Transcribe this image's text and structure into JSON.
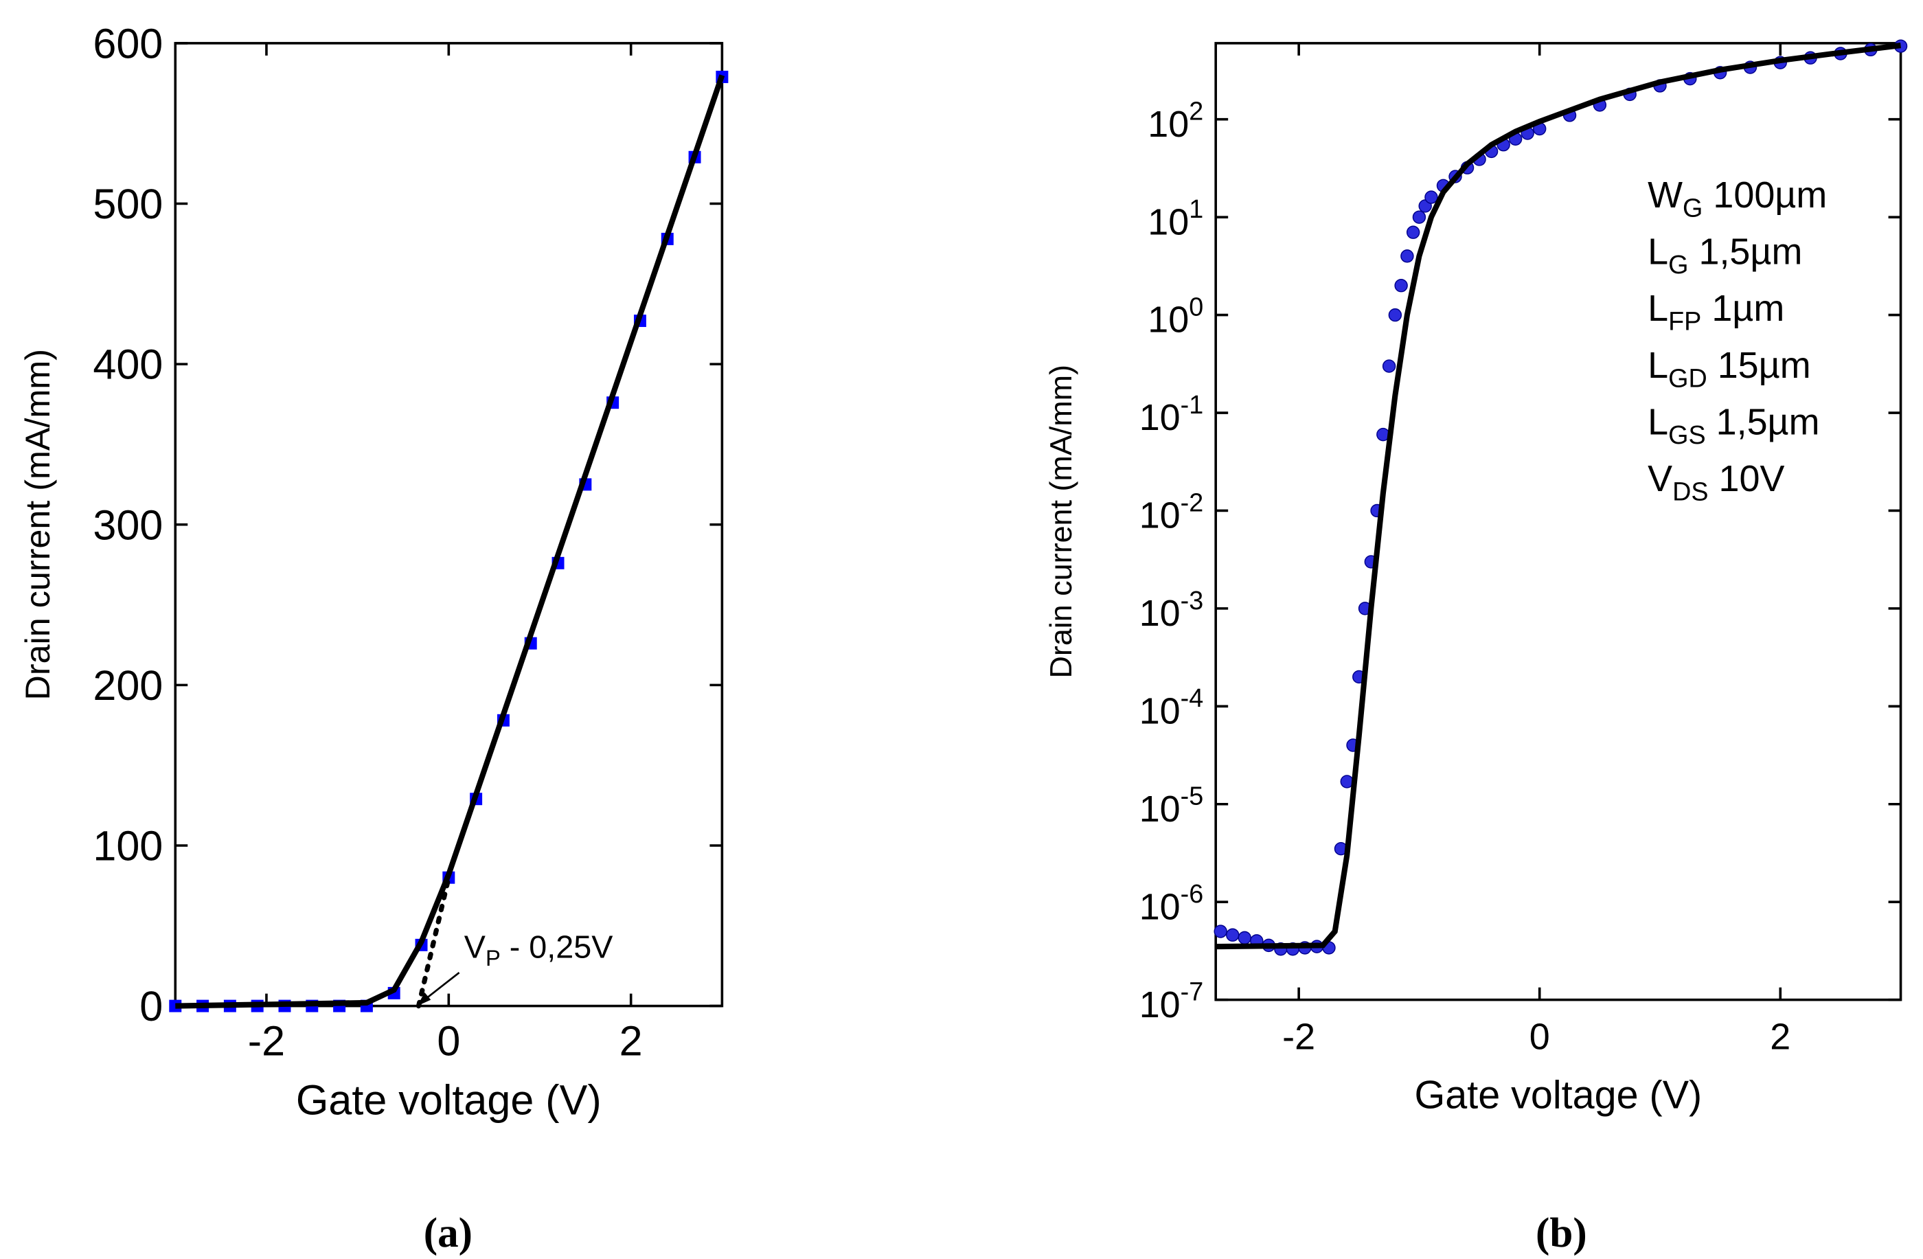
{
  "chart_data": [
    {
      "type": "line",
      "xlabel": "Gate voltage (V)",
      "ylabel": "Drain current (mA/mm)",
      "xlim": [
        -3,
        3
      ],
      "ylim": [
        0,
        600
      ],
      "xticks": [
        -2,
        0,
        2
      ],
      "yticks": [
        0,
        100,
        200,
        300,
        400,
        500,
        600
      ],
      "series": [
        {
          "color": "#0000ff",
          "marker": "square",
          "x": [
            -3,
            -2.7,
            -2.4,
            -2.1,
            -1.8,
            -1.5,
            -1.2,
            -0.9,
            -0.6,
            -0.3,
            0,
            0.3,
            0.6,
            0.9,
            1.2,
            1.5,
            1.8,
            2.1,
            2.4,
            2.7,
            3
          ],
          "values": [
            0,
            0,
            0,
            0,
            0,
            0,
            0,
            0,
            8,
            38,
            80,
            129,
            178,
            226,
            276,
            325,
            376,
            427,
            478,
            529,
            579
          ]
        },
        {
          "color": "#000000",
          "x": [
            -3,
            -0.9,
            -0.6,
            -0.3,
            0,
            3
          ],
          "values": [
            0,
            2,
            10,
            40,
            82,
            580
          ]
        },
        {
          "color": "#000000",
          "dash": "dot",
          "x": [
            -0.33,
            0
          ],
          "values": [
            0,
            80
          ]
        }
      ],
      "annotation": {
        "main": "V",
        "sub": "P",
        "rest": " - 0,25V"
      },
      "caption": "(a)"
    },
    {
      "type": "line",
      "log_y": true,
      "xlabel": "Gate voltage (V)",
      "ylabel": "Drain current (mA/mm)",
      "xlim": [
        -2.69,
        3
      ],
      "ylim": [
        1e-07,
        600
      ],
      "xticks": [
        -2,
        0,
        2
      ],
      "yticks": [
        {
          "value": 1e-07,
          "label": "10",
          "exponent": "-7"
        },
        {
          "value": 1e-06,
          "label": "10",
          "exponent": "-6"
        },
        {
          "value": 1e-05,
          "label": "10",
          "exponent": "-5"
        },
        {
          "value": 0.0001,
          "label": "10",
          "exponent": "-4"
        },
        {
          "value": 0.001,
          "label": "10",
          "exponent": "-3"
        },
        {
          "value": 0.01,
          "label": "10",
          "exponent": "-2"
        },
        {
          "value": 0.1,
          "label": "10",
          "exponent": "-1"
        },
        {
          "value": 1,
          "label": "10",
          "exponent": "0"
        },
        {
          "value": 10,
          "label": "10",
          "exponent": "1"
        },
        {
          "value": 100,
          "label": "10",
          "exponent": "2"
        }
      ],
      "series": [
        {
          "color": "#2b2bdc",
          "marker": "circle",
          "x": [
            -2.65,
            -2.55,
            -2.45,
            -2.35,
            -2.25,
            -2.15,
            -2.05,
            -1.95,
            -1.85,
            -1.75,
            -1.65,
            -1.6,
            -1.55,
            -1.5,
            -1.45,
            -1.4,
            -1.35,
            -1.3,
            -1.25,
            -1.2,
            -1.15,
            -1.1,
            -1.05,
            -1.0,
            -0.95,
            -0.9,
            -0.8,
            -0.7,
            -0.6,
            -0.5,
            -0.4,
            -0.3,
            -0.2,
            -0.1,
            0,
            0.25,
            0.5,
            0.75,
            1,
            1.25,
            1.5,
            1.75,
            2,
            2.25,
            2.5,
            2.75,
            3
          ],
          "values": [
            5e-07,
            4.6e-07,
            4.3e-07,
            4e-07,
            3.6e-07,
            3.3e-07,
            3.3e-07,
            3.4e-07,
            3.5e-07,
            3.4e-07,
            3.5e-06,
            1.7e-05,
            4e-05,
            0.0002,
            0.001,
            0.003,
            0.01,
            0.06,
            0.3,
            1,
            2,
            4,
            7,
            10,
            13,
            16,
            21,
            26,
            32,
            39,
            47,
            55,
            63,
            72,
            80,
            110,
            140,
            180,
            220,
            260,
            300,
            340,
            380,
            425,
            470,
            515,
            560
          ]
        },
        {
          "color": "#000000",
          "x": [
            -2.69,
            -1.8,
            -1.7,
            -1.6,
            -1.5,
            -1.4,
            -1.3,
            -1.2,
            -1.1,
            -1.0,
            -0.9,
            -0.8,
            -0.6,
            -0.4,
            -0.2,
            0,
            0.5,
            1,
            1.5,
            2,
            2.5,
            3
          ],
          "values": [
            3.5e-07,
            3.6e-07,
            5e-07,
            3e-06,
            5e-05,
            0.001,
            0.015,
            0.15,
            1,
            4,
            10,
            18,
            35,
            55,
            75,
            95,
            160,
            240,
            320,
            400,
            480,
            570
          ]
        }
      ],
      "legend_text": [
        {
          "main": "W",
          "sub": "G",
          "rest": " 100µm"
        },
        {
          "main": "L",
          "sub": "G",
          "rest": " 1,5µm"
        },
        {
          "main": "L",
          "sub": "FP",
          "rest": " 1µm"
        },
        {
          "main": "L",
          "sub": "GD",
          "rest": " 15µm"
        },
        {
          "main": "L",
          "sub": "GS",
          "rest": " 1,5µm"
        },
        {
          "main": "V",
          "sub": "DS",
          "rest": " 10V"
        }
      ],
      "caption": "(b)"
    }
  ]
}
